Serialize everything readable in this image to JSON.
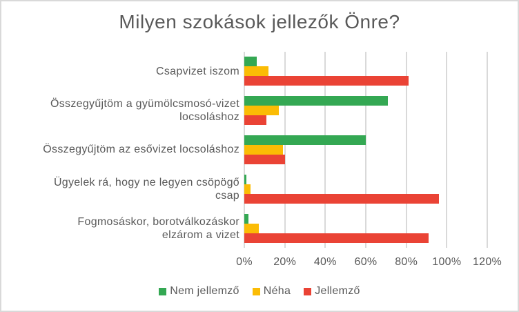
{
  "window": {
    "background": "#ffffff",
    "border_color": "#d9d9d9",
    "text_color": "#595959"
  },
  "chart_data": {
    "type": "bar",
    "orientation": "horizontal",
    "title": "Milyen szokások jellezők Önre?",
    "categories": [
      "Csapvizet iszom",
      "Összegyűjtöm a gyümölcsmosó-vizet locsoláshoz",
      "Összegyűjtöm az esővizet locsoláshoz",
      "Ügyelek rá, hogy ne legyen csöpögő csap",
      "Fogmosáskor, borotválkozáskor elzárom a vizet"
    ],
    "category_lines": [
      [
        "Csapvizet iszom"
      ],
      [
        "Összegyűjtöm a gyümölcsmosó-vizet",
        "locsoláshoz"
      ],
      [
        "Összegyűjtöm az esővizet locsoláshoz"
      ],
      [
        "Ügyelek rá, hogy ne legyen csöpögő",
        "csap"
      ],
      [
        "Fogmosáskor, borotválkozáskor",
        "elzárom a vizet"
      ]
    ],
    "series": [
      {
        "name": "Nem jellemző",
        "color": "#34a853",
        "values": [
          6,
          71,
          60,
          1,
          2
        ]
      },
      {
        "name": "Néha",
        "color": "#fbbc05",
        "values": [
          12,
          17,
          19,
          3,
          7
        ]
      },
      {
        "name": "Jellemző",
        "color": "#ea4335",
        "values": [
          81,
          11,
          20,
          96,
          91
        ]
      }
    ],
    "x_axis": {
      "min": 0,
      "max": 120,
      "unit": "%",
      "ticks": [
        "0%",
        "20%",
        "40%",
        "60%",
        "80%",
        "100%",
        "120%"
      ]
    },
    "legend": {
      "position": "bottom",
      "entries": [
        "Nem jellemző",
        "Néha",
        "Jellemző"
      ]
    },
    "grid": true,
    "gridline_color": "#d9d9d9"
  }
}
